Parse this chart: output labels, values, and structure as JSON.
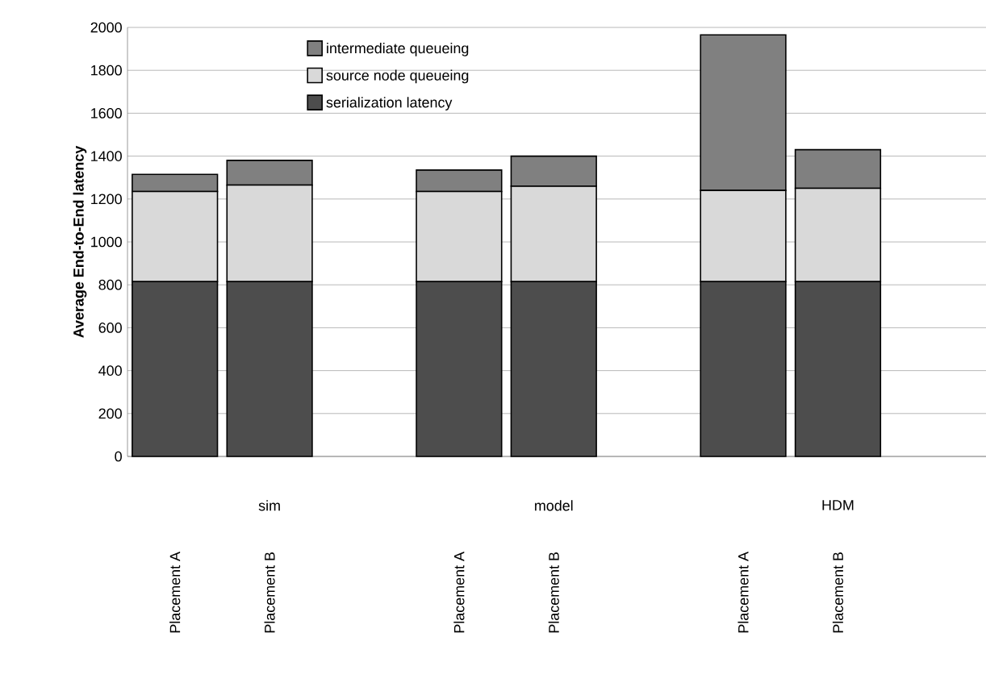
{
  "chart_data": {
    "type": "bar",
    "stacked": true,
    "ylabel": "Average End-to-End latency",
    "categories": [
      "Placement A",
      "Placement B",
      null,
      "Placement A",
      "Placement B",
      null,
      "Placement A",
      "Placement B",
      null
    ],
    "series": [
      {
        "name": "serialization latency",
        "color": "#4d4d4d",
        "values": [
          815,
          815,
          null,
          815,
          815,
          null,
          815,
          815,
          null
        ]
      },
      {
        "name": "source node queueing",
        "color": "#d9d9d9",
        "values": [
          420,
          450,
          null,
          420,
          445,
          null,
          425,
          435,
          null
        ]
      },
      {
        "name": "intermediate queueing",
        "color": "#808080",
        "values": [
          80,
          115,
          null,
          100,
          140,
          null,
          725,
          180,
          null
        ]
      }
    ],
    "annotations": [
      "sim",
      "model",
      "HDM"
    ],
    "ylim": [
      0,
      2000
    ],
    "yticks": [
      0,
      200,
      400,
      600,
      800,
      1000,
      1200,
      1400,
      1600,
      1800,
      2000
    ],
    "grid": "y",
    "legend": "top left"
  }
}
